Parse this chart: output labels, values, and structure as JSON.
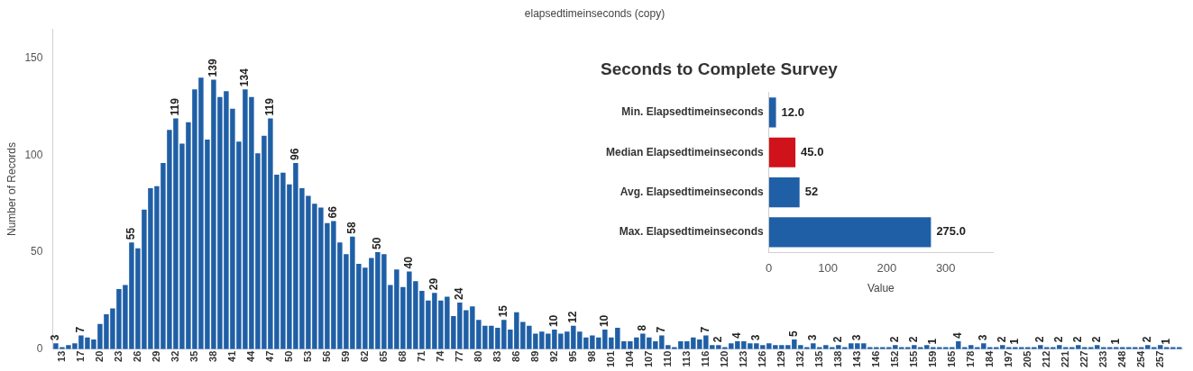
{
  "chart_data": [
    {
      "type": "bar",
      "title": "elapsedtimeinseconds (copy)",
      "ylabel": "Number of Records",
      "color": "#1f5fa6",
      "ylim": [
        0,
        165
      ],
      "yticks": [
        0,
        50,
        100,
        150
      ],
      "grid": false,
      "categories": [
        null,
        "13",
        null,
        null,
        "17",
        null,
        null,
        "20",
        null,
        null,
        "23",
        null,
        null,
        "26",
        null,
        null,
        "29",
        null,
        null,
        "32",
        null,
        null,
        "35",
        null,
        null,
        "38",
        null,
        null,
        "41",
        null,
        null,
        "44",
        null,
        null,
        "47",
        null,
        null,
        "50",
        null,
        null,
        "53",
        null,
        null,
        "56",
        null,
        null,
        "59",
        null,
        null,
        "62",
        null,
        null,
        "65",
        null,
        null,
        "68",
        null,
        null,
        "71",
        null,
        null,
        "74",
        null,
        null,
        "77",
        null,
        null,
        "80",
        null,
        null,
        "83",
        null,
        null,
        "86",
        null,
        null,
        "89",
        null,
        null,
        "92",
        null,
        null,
        "95",
        null,
        null,
        "98",
        null,
        null,
        "101",
        null,
        null,
        "104",
        null,
        null,
        "107",
        null,
        null,
        "110",
        null,
        null,
        "113",
        null,
        null,
        "116",
        null,
        null,
        "120",
        null,
        null,
        "123",
        null,
        null,
        "126",
        null,
        null,
        "129",
        null,
        null,
        "132",
        null,
        null,
        "135",
        null,
        null,
        "138",
        null,
        null,
        "143",
        null,
        null,
        "146",
        null,
        null,
        "152",
        null,
        null,
        "155",
        null,
        null,
        "159",
        null,
        null,
        "165",
        null,
        null,
        "178",
        null,
        null,
        "184",
        null,
        null,
        "197",
        null,
        null,
        "205",
        null,
        null,
        "212",
        null,
        null,
        "221",
        null,
        null,
        "227",
        null,
        null,
        "233",
        null,
        null,
        "248",
        null,
        null,
        "254",
        null,
        null,
        "257",
        null,
        null,
        null
      ],
      "values": [
        3,
        1,
        2,
        3,
        7,
        6,
        5,
        13,
        18,
        21,
        31,
        33,
        55,
        52,
        72,
        83,
        84,
        96,
        113,
        119,
        106,
        117,
        134,
        140,
        108,
        139,
        130,
        133,
        124,
        107,
        134,
        130,
        101,
        110,
        119,
        90,
        91,
        85,
        96,
        83,
        79,
        75,
        73,
        65,
        66,
        55,
        49,
        58,
        44,
        42,
        47,
        50,
        49,
        33,
        41,
        32,
        40,
        35,
        30,
        25,
        29,
        25,
        27,
        17,
        24,
        20,
        22,
        15,
        12,
        12,
        11,
        15,
        10,
        19,
        14,
        12,
        8,
        9,
        8,
        10,
        8,
        9,
        12,
        9,
        6,
        7,
        6,
        10,
        6,
        11,
        4,
        4,
        6,
        8,
        6,
        4,
        7,
        2,
        1,
        4,
        4,
        6,
        5,
        7,
        2,
        2,
        1,
        3,
        4,
        4,
        3,
        3,
        2,
        3,
        2,
        2,
        2,
        5,
        2,
        1,
        3,
        1,
        2,
        1,
        2,
        1,
        3,
        3,
        3,
        1,
        1,
        1,
        1,
        2,
        1,
        1,
        2,
        1,
        2,
        1,
        1,
        1,
        1,
        4,
        1,
        2,
        1,
        3,
        1,
        1,
        2,
        1,
        1,
        1,
        1,
        1,
        2,
        1,
        1,
        2,
        1,
        1,
        2,
        1,
        1,
        2,
        1,
        1,
        1,
        1,
        1,
        1,
        1,
        2,
        1,
        2,
        1,
        1,
        1
      ],
      "value_labels": [
        "3",
        null,
        null,
        null,
        "7",
        null,
        null,
        null,
        null,
        null,
        null,
        null,
        "55",
        null,
        null,
        null,
        null,
        null,
        null,
        "119",
        null,
        null,
        null,
        null,
        null,
        "139",
        null,
        null,
        null,
        null,
        "134",
        null,
        null,
        null,
        "119",
        null,
        null,
        null,
        "96",
        null,
        null,
        null,
        null,
        null,
        "66",
        null,
        null,
        "58",
        null,
        null,
        null,
        "50",
        null,
        null,
        null,
        null,
        "40",
        null,
        null,
        null,
        "29",
        null,
        null,
        null,
        "24",
        null,
        null,
        null,
        null,
        null,
        null,
        "15",
        null,
        null,
        null,
        null,
        null,
        null,
        null,
        "10",
        null,
        null,
        "12",
        null,
        null,
        null,
        null,
        "10",
        null,
        null,
        null,
        null,
        null,
        "8",
        null,
        null,
        "7",
        null,
        null,
        null,
        null,
        null,
        null,
        "7",
        null,
        "2",
        null,
        null,
        "4",
        null,
        null,
        "3",
        null,
        null,
        null,
        null,
        null,
        "5",
        null,
        null,
        "3",
        null,
        null,
        null,
        "2",
        null,
        null,
        "3",
        null,
        null,
        null,
        null,
        null,
        "2",
        null,
        null,
        "2",
        null,
        null,
        "1",
        null,
        null,
        null,
        "4",
        null,
        null,
        null,
        "3",
        null,
        null,
        "2",
        null,
        "1",
        null,
        null,
        null,
        "2",
        null,
        null,
        "2",
        null,
        null,
        "2",
        null,
        null,
        "2",
        null,
        null,
        "1",
        null,
        null,
        null,
        null,
        "2",
        null,
        null,
        "1",
        null,
        null
      ]
    },
    {
      "type": "bar",
      "orientation": "horizontal",
      "title": "Seconds to Complete Survey",
      "xlabel": "Value",
      "xlim": [
        0,
        380
      ],
      "xticks": [
        0,
        100,
        200,
        300
      ],
      "grid": false,
      "categories": [
        "Min. Elapsedtimeinseconds",
        "Median Elapsedtimeinseconds",
        "Avg. Elapsedtimeinseconds",
        "Max. Elapsedtimeinseconds"
      ],
      "values": [
        12.0,
        45.0,
        52,
        275.0
      ],
      "colors": [
        "#1f5fa6",
        "#d0121b",
        "#1f5fa6",
        "#1f5fa6"
      ],
      "value_labels": [
        "12.0",
        "45.0",
        "52",
        "275.0"
      ]
    }
  ]
}
